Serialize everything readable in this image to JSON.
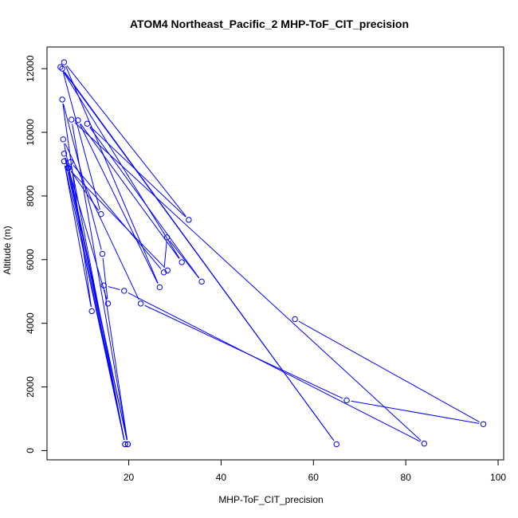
{
  "chart_data": {
    "type": "line",
    "title": "ATOM4 Northeast_Pacific_2 MHP-ToF_CIT_precision",
    "xlabel": "MHP-ToF_CIT_precision",
    "ylabel": "Altitude (m)",
    "xticks": [
      20,
      40,
      60,
      80,
      100
    ],
    "yticks": [
      0,
      2000,
      4000,
      6000,
      8000,
      10000,
      12000
    ],
    "xlim": [
      2.3,
      101.2
    ],
    "ylim": [
      -290,
      12680
    ],
    "markers": "open-circle",
    "series": [
      {
        "color": "#0000ff",
        "points": [
          [
            56.0,
            4130
          ],
          [
            96.8,
            830
          ],
          [
            67.2,
            1580
          ],
          [
            22.6,
            4620
          ],
          [
            5.8,
            9780
          ],
          [
            19.2,
            200
          ],
          [
            6.0,
            9330
          ],
          [
            15.5,
            4620
          ],
          [
            14.3,
            6180
          ],
          [
            5.6,
            11030
          ],
          [
            12.0,
            4380
          ],
          [
            6.0,
            9090
          ],
          [
            19.2,
            200
          ],
          [
            7.4,
            9070
          ],
          [
            27.6,
            5600
          ],
          [
            28.3,
            6700
          ],
          [
            35.8,
            5310
          ],
          [
            11.0,
            10270
          ],
          [
            33.0,
            7250
          ],
          [
            6.0,
            12200
          ],
          [
            26.7,
            5130
          ],
          [
            9.0,
            10380
          ],
          [
            31.5,
            5920
          ],
          [
            5.2,
            12050
          ],
          [
            65.0,
            200
          ],
          [
            5.6,
            12000
          ],
          [
            14.0,
            7430
          ],
          [
            7.0,
            8880
          ],
          [
            19.8,
            200
          ],
          [
            7.6,
            10400
          ],
          [
            84.0,
            220
          ],
          [
            19.0,
            5020
          ],
          [
            14.6,
            5190
          ],
          [
            19.8,
            200
          ],
          [
            6.8,
            8880
          ],
          [
            28.4,
            5660
          ]
        ]
      }
    ]
  }
}
